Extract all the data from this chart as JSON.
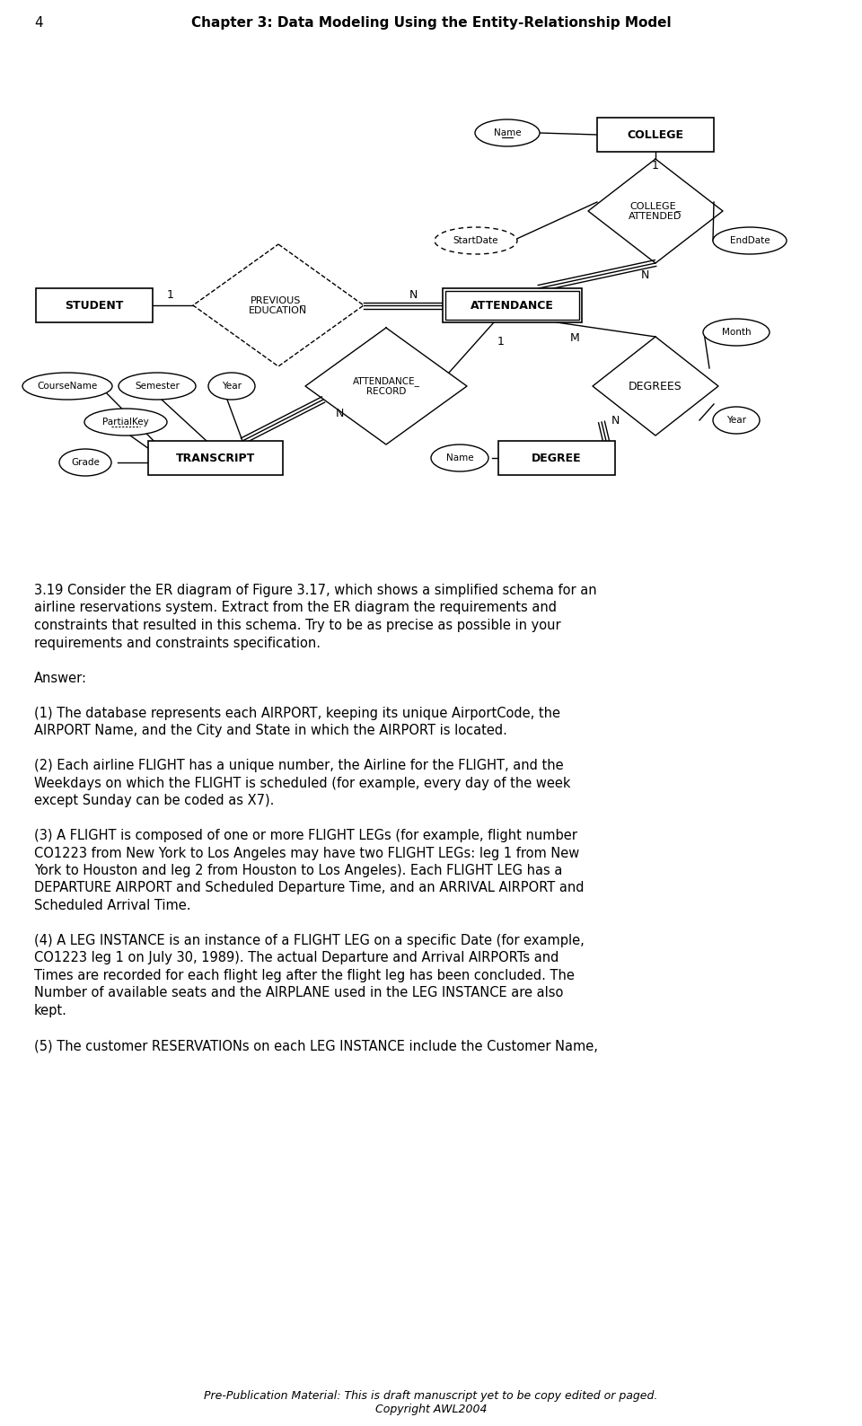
{
  "page_num": "4",
  "header": "Chapter 3: Data Modeling Using the Entity-Relationship Model",
  "footer_line1": "Pre-Publication Material: This is draft manuscript yet to be copy edited or paged.",
  "footer_line2": "Copyright AWL2004",
  "body_text": [
    "3.19 Consider the ER diagram of Figure 3.17, which shows a simplified schema for an",
    "airline reservations system. Extract from the ER diagram the requirements and",
    "constraints that resulted in this schema. Try to be as precise as possible in your",
    "requirements and constraints specification.",
    "",
    "Answer:",
    "",
    "(1) The database represents each AIRPORT, keeping its unique AirportCode, the",
    "AIRPORT Name, and the City and State in which the AIRPORT is located.",
    "",
    "(2) Each airline FLIGHT has a unique number, the Airline for the FLIGHT, and the",
    "Weekdays on which the FLIGHT is scheduled (for example, every day of the week",
    "except Sunday can be coded as X7).",
    "",
    "(3) A FLIGHT is composed of one or more FLIGHT LEGs (for example, flight number",
    "CO1223 from New York to Los Angeles may have two FLIGHT LEGs: leg 1 from New",
    "York to Houston and leg 2 from Houston to Los Angeles). Each FLIGHT LEG has a",
    "DEPARTURE AIRPORT and Scheduled Departure Time, and an ARRIVAL AIRPORT and",
    "Scheduled Arrival Time.",
    "",
    "(4) A LEG INSTANCE is an instance of a FLIGHT LEG on a specific Date (for example,",
    "CO1223 leg 1 on July 30, 1989). The actual Departure and Arrival AIRPORTs and",
    "Times are recorded for each flight leg after the flight leg has been concluded. The",
    "Number of available seats and the AIRPLANE used in the LEG INSTANCE are also",
    "kept.",
    "",
    "(5) The customer RESERVATIONs on each LEG INSTANCE include the Customer Name,"
  ]
}
